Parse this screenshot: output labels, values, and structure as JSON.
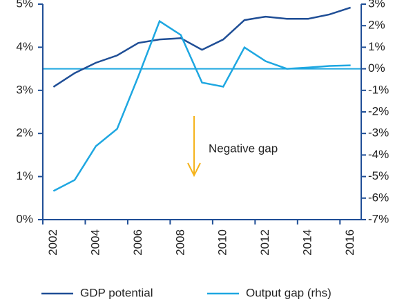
{
  "chart_data": {
    "type": "line",
    "categories": [
      "2002",
      null,
      "2004",
      null,
      "2006",
      null,
      "2008",
      null,
      "2010",
      null,
      "2012",
      null,
      "2014",
      null,
      "2016"
    ],
    "series": [
      {
        "name": "GDP potential",
        "color": "#1f4e96",
        "axis": "y",
        "values": [
          3.08,
          3.4,
          3.64,
          3.81,
          4.1,
          4.18,
          4.21,
          3.94,
          4.18,
          4.63,
          4.71,
          4.66,
          4.66,
          4.76,
          4.92
        ]
      },
      {
        "name": "Output gap (rhs)",
        "color": "#1ea7e1",
        "axis": "y2",
        "values": [
          -5.67,
          -5.16,
          -3.59,
          -2.79,
          -0.35,
          2.21,
          1.57,
          -0.64,
          -0.83,
          0.99,
          0.35,
          0,
          0.06,
          0.13,
          0.16
        ]
      }
    ],
    "ylim": [
      0,
      5
    ],
    "yticks": [
      {
        "value": 0,
        "label": "0%"
      },
      {
        "value": 1,
        "label": "1%"
      },
      {
        "value": 2,
        "label": "2%"
      },
      {
        "value": 3,
        "label": "3%"
      },
      {
        "value": 4,
        "label": "4%"
      },
      {
        "value": 5,
        "label": "5%"
      }
    ],
    "y2lim": [
      -7,
      3
    ],
    "y2ticks": [
      {
        "value": -7,
        "label": "-7%"
      },
      {
        "value": -6,
        "label": "-6%"
      },
      {
        "value": -5,
        "label": "-5%"
      },
      {
        "value": -4,
        "label": "-4%"
      },
      {
        "value": -3,
        "label": "-3%"
      },
      {
        "value": -2,
        "label": "-2%"
      },
      {
        "value": -1,
        "label": "-1%"
      },
      {
        "value": 0,
        "label": "0%"
      },
      {
        "value": 1,
        "label": "1%"
      },
      {
        "value": 2,
        "label": "2%"
      },
      {
        "value": 3,
        "label": "3%"
      }
    ],
    "annotation": "Negative gap",
    "legend": "bottom"
  }
}
